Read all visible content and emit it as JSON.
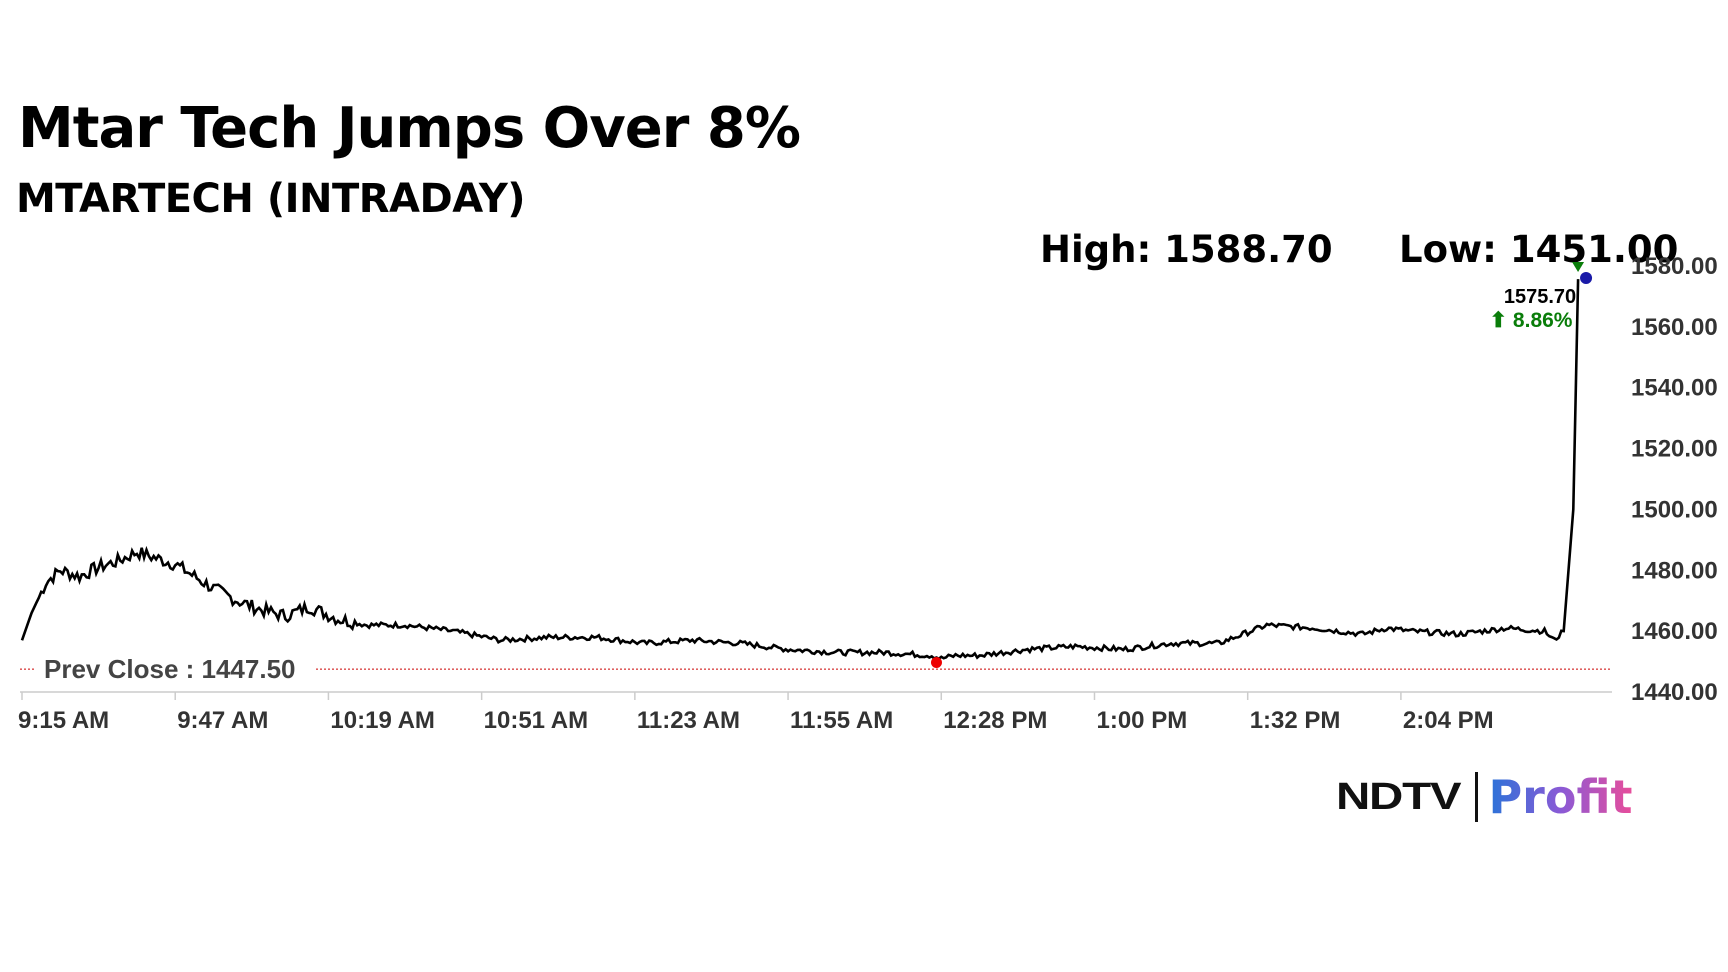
{
  "headline": "Mtar Tech Jumps Over 8%",
  "subheadline": "MTARTECH (INTRADAY)",
  "high_label": "High: 1588.70",
  "low_label": "Low: 1451.00",
  "prev_close_label": "Prev Close : 1447.50",
  "last_price_label": "1575.70",
  "last_change_label": "⬆ 8.86%",
  "brand": {
    "ndtv": "NDTV",
    "profit": "Profit"
  },
  "colors": {
    "line": "#000000",
    "prev_close": "#cc0000",
    "low_marker": "#ee0000",
    "high_marker": "#0a7d0a",
    "last_marker": "#1a1aa8",
    "change_up": "#0a7d0a"
  },
  "chart_data": {
    "type": "line",
    "title": "Mtar Tech Jumps Over 8%",
    "subtitle": "MTARTECH (INTRADAY)",
    "xlabel": "",
    "ylabel": "",
    "ylim": [
      1440,
      1580
    ],
    "yticks": [
      "1440.00",
      "1460.00",
      "1480.00",
      "1500.00",
      "1520.00",
      "1540.00",
      "1560.00",
      "1580.00"
    ],
    "xticks": [
      "9:15 AM",
      "9:47 AM",
      "10:19 AM",
      "10:51 AM",
      "11:23 AM",
      "11:55 AM",
      "12:28 PM",
      "1:00 PM",
      "1:32 PM",
      "2:04 PM"
    ],
    "x_minutes_since_open": [
      0,
      2,
      5,
      8,
      12,
      16,
      20,
      24,
      28,
      32,
      36,
      40,
      45,
      50,
      55,
      60,
      66,
      72,
      80,
      90,
      100,
      110,
      120,
      130,
      140,
      150,
      160,
      170,
      180,
      190,
      192,
      195,
      200,
      210,
      220,
      230,
      240,
      250,
      260,
      270,
      280,
      285,
      290,
      300,
      310,
      318,
      320,
      322,
      324,
      325
    ],
    "y": [
      1457,
      1466,
      1476,
      1480,
      1478,
      1481,
      1483,
      1486,
      1484,
      1482,
      1478,
      1474,
      1470,
      1467,
      1465,
      1468,
      1464,
      1462,
      1462,
      1460,
      1457,
      1458,
      1458,
      1456,
      1457,
      1456,
      1454,
      1453,
      1453,
      1452,
      1451,
      1452,
      1452,
      1454,
      1455,
      1454,
      1456,
      1456,
      1462,
      1461,
      1459,
      1461,
      1460,
      1459,
      1461,
      1460,
      1457,
      1460,
      1500,
      1575.7
    ],
    "prev_close": 1447.5,
    "high": 1588.7,
    "low": 1451.0,
    "last": 1575.7,
    "change_pct": 8.86,
    "grid": false,
    "legend": "none"
  }
}
